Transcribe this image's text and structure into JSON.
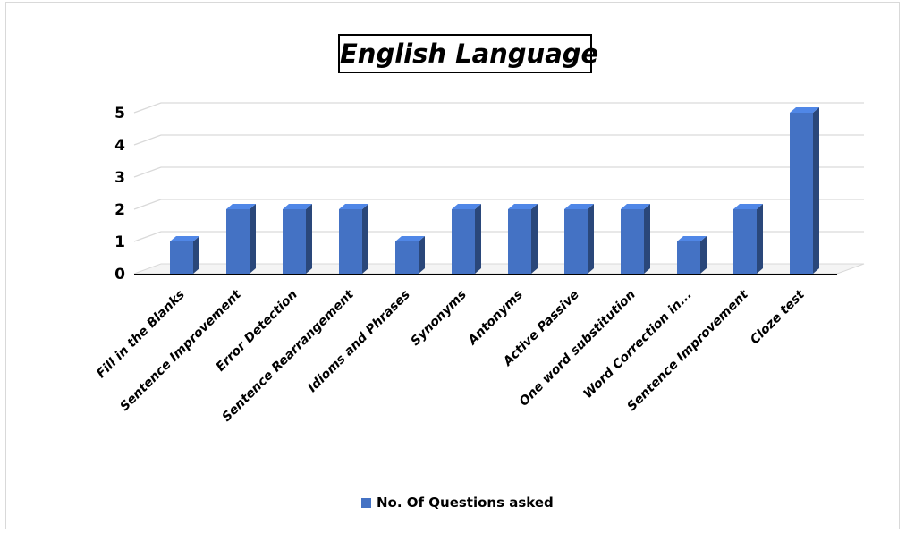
{
  "chart_data": {
    "type": "bar",
    "title": "English Language",
    "xlabel": "",
    "ylabel": "",
    "ylim": [
      0,
      5
    ],
    "yticks": [
      0,
      1,
      2,
      3,
      4,
      5
    ],
    "grid": true,
    "style": "3d-column",
    "legend_position": "bottom",
    "categories": [
      "Fill in the Blanks",
      "Sentence Improvement",
      "Error Detection",
      "Sentence Rearrangement",
      "Idioms and Phrases",
      "Synonyms",
      "Antonyms",
      "Active Passive",
      "One word substitution",
      "Word Correction in...",
      "Sentence Improvement",
      "Cloze test"
    ],
    "series": [
      {
        "name": "No. Of Questions asked",
        "color": "#4472c4",
        "values": [
          1,
          2,
          2,
          2,
          1,
          2,
          2,
          2,
          2,
          1,
          2,
          5
        ]
      }
    ]
  }
}
